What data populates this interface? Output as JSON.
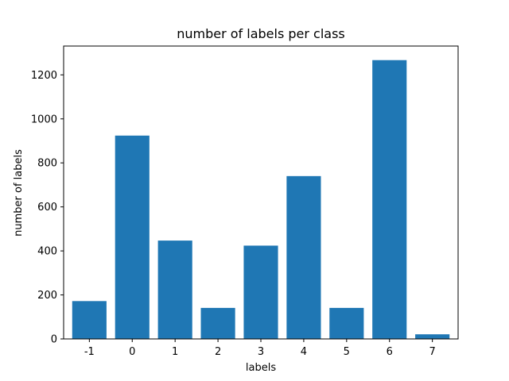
{
  "chart_data": {
    "type": "bar",
    "title": "number of labels per class",
    "xlabel": "labels",
    "ylabel": "number of labels",
    "categories": [
      "-1",
      "0",
      "1",
      "2",
      "3",
      "4",
      "5",
      "6",
      "7"
    ],
    "values": [
      172,
      924,
      447,
      141,
      424,
      740,
      141,
      1267,
      21
    ],
    "ylim": [
      0,
      1331
    ],
    "yticks": [
      0,
      200,
      400,
      600,
      800,
      1000,
      1200
    ],
    "bar_color": "#1f77b4",
    "grid": false,
    "legend": "none"
  }
}
